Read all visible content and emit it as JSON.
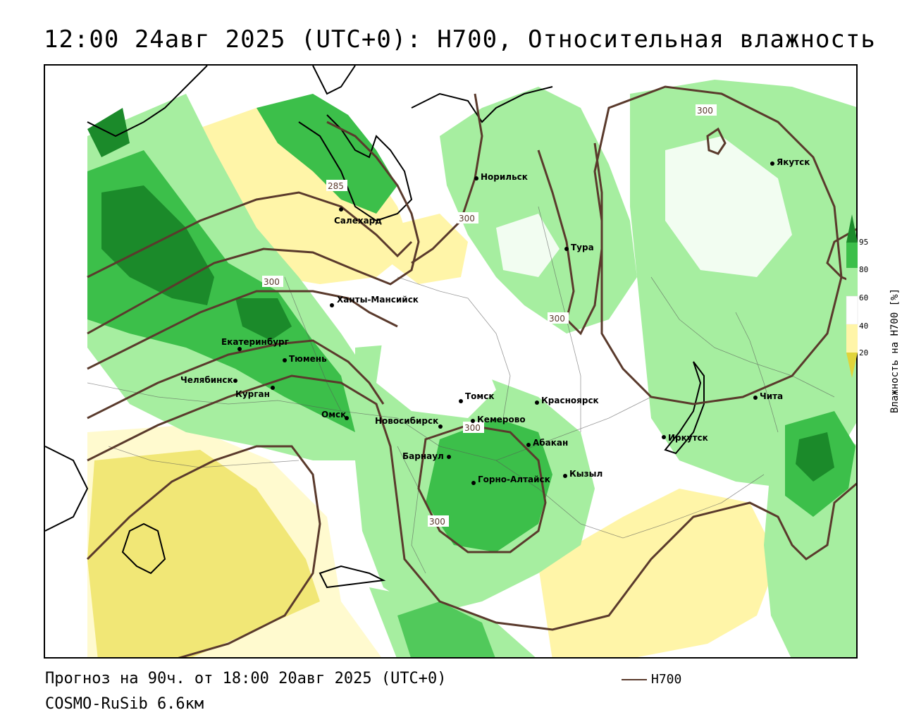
{
  "title": "12:00 24авг 2025 (UTC+0): H700, Относительная влажность",
  "forecast_line": "Прогноз на 90ч. от 18:00 20авг 2025 (UTC+0)",
  "model_line": "COSMO-RuSib 6.6км",
  "contour_legend": {
    "label": "H700",
    "color": "#5a3a2c"
  },
  "colorbar": {
    "title": "Влажность на H700 [%]",
    "ticks": [
      "95",
      "80",
      "60",
      "40",
      "20"
    ],
    "colors": {
      "very_humid": "#1b8a2a",
      "humid": "#3cbf4a",
      "moist": "#a6eea0",
      "neutral": "#ffffff",
      "dry": "#fff5a8",
      "very_dry": "#e0d43a"
    }
  },
  "contour_labels": [
    "300",
    "300",
    "300",
    "300",
    "300",
    "300",
    "285"
  ],
  "cities": [
    {
      "name": "Норильск"
    },
    {
      "name": "Якутск"
    },
    {
      "name": "Салехард"
    },
    {
      "name": "Тура"
    },
    {
      "name": "Ханты-Мансийск"
    },
    {
      "name": "Екатеринбург"
    },
    {
      "name": "Тюмень"
    },
    {
      "name": "Челябинск"
    },
    {
      "name": "Курган"
    },
    {
      "name": "Омск"
    },
    {
      "name": "Томск"
    },
    {
      "name": "Красноярск"
    },
    {
      "name": "Новосибирск"
    },
    {
      "name": "Кемерово"
    },
    {
      "name": "Абакан"
    },
    {
      "name": "Барнаул"
    },
    {
      "name": "Горно-Алтайск"
    },
    {
      "name": "Кызыл"
    },
    {
      "name": "Иркутск"
    },
    {
      "name": "Чита"
    }
  ]
}
